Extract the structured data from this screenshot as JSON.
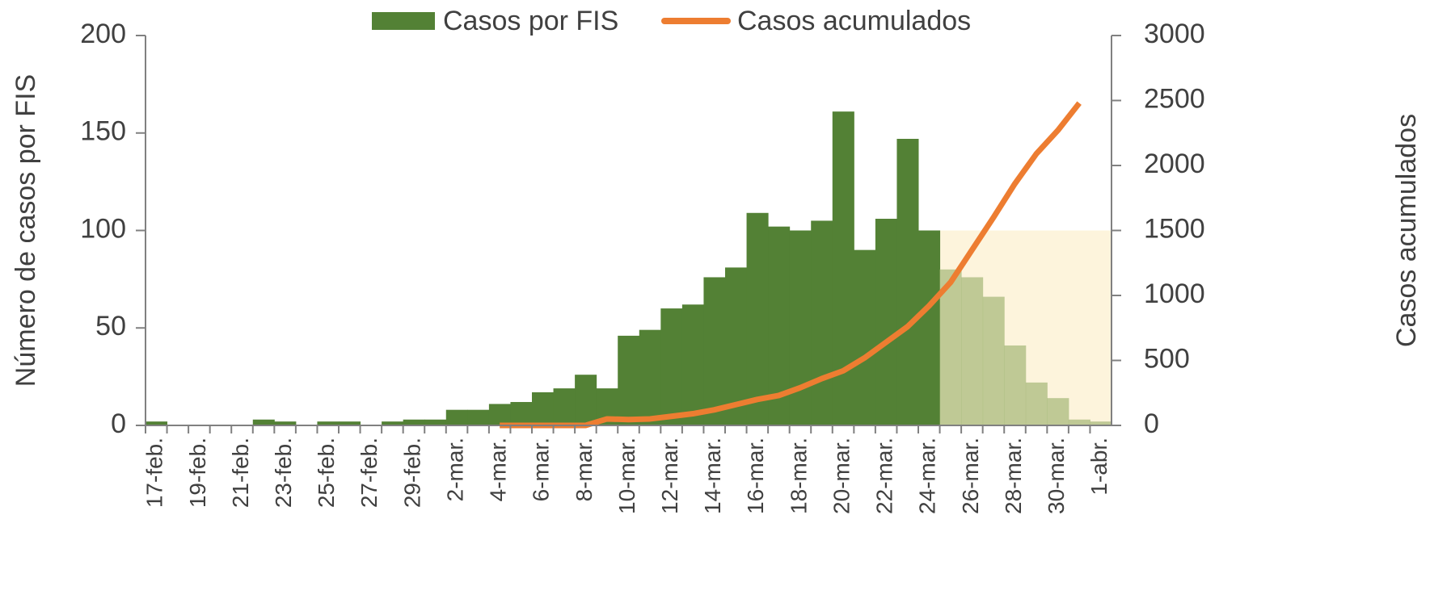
{
  "chart_data": {
    "type": "bar_line",
    "categories": [
      "17-feb.",
      null,
      "19-feb.",
      null,
      "21-feb.",
      null,
      "23-feb.",
      null,
      "25-feb.",
      null,
      "27-feb.",
      null,
      "29-feb.",
      null,
      "2-mar.",
      null,
      "4-mar.",
      null,
      "6-mar.",
      null,
      "8-mar.",
      null,
      "10-mar.",
      null,
      "12-mar.",
      null,
      "14-mar.",
      null,
      "16-mar.",
      null,
      "18-mar.",
      null,
      "20-mar.",
      null,
      "22-mar.",
      null,
      "24-mar.",
      null,
      "26-mar.",
      null,
      "28-mar.",
      null,
      "30-mar.",
      null,
      "1-abr."
    ],
    "series": [
      {
        "name": "Casos por FIS",
        "type": "bar",
        "axis": "y",
        "color": "#538135",
        "values": [
          2,
          0,
          0,
          0,
          0,
          3,
          2,
          0,
          2,
          2,
          0,
          2,
          3,
          3,
          8,
          8,
          11,
          12,
          17,
          19,
          26,
          19,
          46,
          49,
          60,
          62,
          76,
          81,
          109,
          102,
          100,
          105,
          161,
          90,
          106,
          147,
          100,
          80,
          76,
          66,
          41,
          22,
          14,
          3,
          2
        ],
        "colors": [
          "#538135",
          "#538135",
          "#538135",
          "#538135",
          "#538135",
          "#538135",
          "#538135",
          "#538135",
          "#538135",
          "#538135",
          "#538135",
          "#538135",
          "#538135",
          "#538135",
          "#538135",
          "#538135",
          "#538135",
          "#538135",
          "#538135",
          "#538135",
          "#538135",
          "#538135",
          "#538135",
          "#538135",
          "#538135",
          "#538135",
          "#538135",
          "#538135",
          "#538135",
          "#538135",
          "#538135",
          "#538135",
          "#538135",
          "#538135",
          "#538135",
          "#538135",
          "#538135",
          "#a9bb7e",
          "#a9bb7e",
          "#a9bb7e",
          "#a9bb7e",
          "#a9bb7e",
          "#a9bb7e",
          "#a9bb7e",
          "#a9bb7e"
        ]
      },
      {
        "name": "Casos acumulados",
        "type": "line",
        "axis": "y2",
        "color": "#ed7d31",
        "values": [
          null,
          null,
          null,
          null,
          null,
          null,
          null,
          null,
          null,
          null,
          null,
          null,
          null,
          null,
          null,
          null,
          0,
          0,
          0,
          0,
          0,
          50,
          45,
          50,
          70,
          90,
          120,
          160,
          200,
          230,
          290,
          360,
          420,
          520,
          640,
          760,
          920,
          1100,
          1350,
          1600,
          1860,
          2090,
          2270,
          2480,
          null
        ]
      }
    ],
    "shade": {
      "color": "#fdf4dc",
      "opacity": 0.75,
      "from_color": "#a9bb7e",
      "y": 100
    },
    "ylabel": "Número de casos por FIS",
    "y2label": "Casos acumulados",
    "ylim": [
      0,
      200
    ],
    "yticks": [
      0,
      50,
      100,
      150,
      200
    ],
    "y2lim": [
      0,
      3000
    ],
    "y2ticks": [
      0,
      500,
      1000,
      1500,
      2000,
      2500,
      3000
    ]
  }
}
